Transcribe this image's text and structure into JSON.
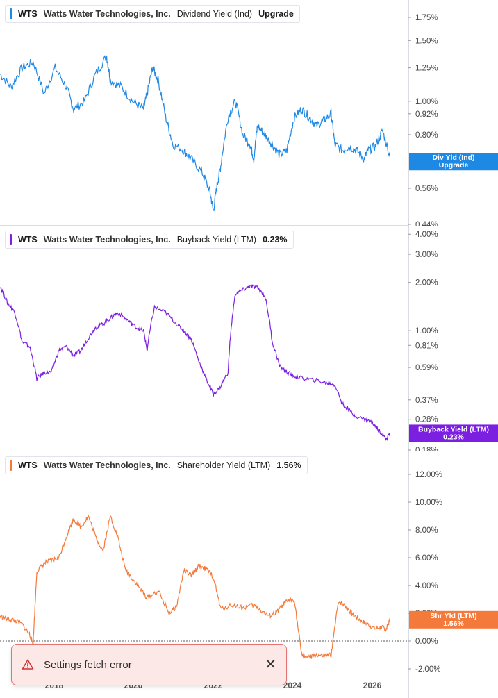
{
  "x_axis_labels": [
    "2018",
    "2020",
    "2022",
    "2024",
    "2026"
  ],
  "toast": {
    "message": "Settings fetch error",
    "icon": "warning-triangle-icon",
    "close_icon": "close-icon"
  },
  "chart_data": [
    {
      "type": "line",
      "ticker": "WTS",
      "company": "Watts Water Technologies, Inc.",
      "metric": "Dividend Yield (Ind)",
      "legend_value": "Upgrade",
      "color": "#1e88e5",
      "scale": "log",
      "y_ticks": [
        "1.75%",
        "1.50%",
        "1.25%",
        "1.00%",
        "0.92%",
        "0.80%",
        "0.56%",
        "0.44%"
      ],
      "y_tick_values": [
        1.75,
        1.5,
        1.25,
        1.0,
        0.92,
        0.8,
        0.56,
        0.44
      ],
      "ylim": [
        0.44,
        1.92
      ],
      "end_label": [
        "Div Yld (Ind)",
        "Upgrade"
      ],
      "xlim": [
        2016.0,
        2026.8
      ],
      "x": [
        2016.0,
        2016.3,
        2016.6,
        2016.9,
        2017.2,
        2017.5,
        2017.8,
        2018.0,
        2018.3,
        2018.6,
        2018.9,
        2019.0,
        2019.3,
        2019.6,
        2019.9,
        2020.0,
        2020.15,
        2020.3,
        2020.5,
        2020.7,
        2021.0,
        2021.2,
        2021.5,
        2021.7,
        2021.8,
        2021.9,
        2022.0,
        2022.2,
        2022.4,
        2022.6,
        2022.8,
        2022.9,
        2023.0,
        2023.2,
        2023.4,
        2023.6,
        2023.8,
        2024.0,
        2024.2,
        2024.4,
        2024.6,
        2024.8,
        2025.0,
        2025.1,
        2025.3,
        2025.5,
        2025.7,
        2025.9,
        2026.0,
        2026.2,
        2026.4,
        2026.6
      ],
      "y": [
        1.2,
        1.1,
        1.25,
        1.3,
        1.05,
        1.25,
        1.1,
        0.95,
        1.0,
        1.2,
        1.35,
        1.15,
        1.1,
        1.0,
        0.95,
        1.05,
        1.25,
        1.15,
        0.9,
        0.75,
        0.72,
        0.68,
        0.62,
        0.55,
        0.48,
        0.57,
        0.65,
        0.9,
        1.0,
        0.8,
        0.75,
        0.68,
        0.85,
        0.8,
        0.75,
        0.7,
        0.72,
        0.9,
        0.95,
        0.9,
        0.85,
        0.88,
        0.92,
        0.75,
        0.72,
        0.74,
        0.72,
        0.68,
        0.72,
        0.74,
        0.82,
        0.69
      ]
    },
    {
      "type": "line",
      "ticker": "WTS",
      "company": "Watts Water Technologies, Inc.",
      "metric": "Buyback Yield (LTM)",
      "legend_value": "0.23%",
      "color": "#7b1fe0",
      "scale": "log",
      "y_ticks": [
        "4.00%",
        "3.00%",
        "2.00%",
        "1.00%",
        "0.81%",
        "0.59%",
        "0.37%",
        "0.28%",
        "0.18%"
      ],
      "y_tick_values": [
        4.0,
        3.0,
        2.0,
        1.0,
        0.81,
        0.59,
        0.37,
        0.28,
        0.18
      ],
      "ylim": [
        0.18,
        4.3
      ],
      "end_label": [
        "Buyback Yield (LTM)",
        "0.23%"
      ],
      "xlim": [
        2016.0,
        2026.8
      ],
      "x": [
        2016.0,
        2016.2,
        2016.4,
        2016.6,
        2016.8,
        2017.0,
        2017.2,
        2017.4,
        2017.6,
        2017.8,
        2018.0,
        2018.2,
        2018.4,
        2018.6,
        2018.8,
        2019.0,
        2019.2,
        2019.5,
        2019.7,
        2019.9,
        2020.0,
        2020.2,
        2020.5,
        2020.8,
        2021.0,
        2021.2,
        2021.4,
        2021.6,
        2021.8,
        2022.0,
        2022.2,
        2022.4,
        2022.6,
        2022.8,
        2023.0,
        2023.2,
        2023.4,
        2023.6,
        2023.8,
        2024.0,
        2024.3,
        2024.6,
        2024.9,
        2025.1,
        2025.3,
        2025.6,
        2025.9,
        2026.1,
        2026.3,
        2026.5,
        2026.6
      ],
      "y": [
        1.9,
        1.5,
        1.3,
        0.85,
        0.8,
        0.5,
        0.55,
        0.55,
        0.75,
        0.8,
        0.7,
        0.75,
        0.9,
        1.05,
        1.1,
        1.2,
        1.3,
        1.15,
        1.05,
        1.0,
        0.75,
        1.4,
        1.3,
        1.1,
        1.0,
        0.88,
        0.65,
        0.5,
        0.4,
        0.45,
        0.55,
        1.7,
        1.8,
        1.9,
        1.85,
        1.65,
        0.85,
        0.6,
        0.55,
        0.52,
        0.5,
        0.49,
        0.47,
        0.46,
        0.35,
        0.3,
        0.28,
        0.27,
        0.24,
        0.21,
        0.23
      ]
    },
    {
      "type": "line",
      "ticker": "WTS",
      "company": "Watts Water Technologies, Inc.",
      "metric": "Shareholder Yield (LTM)",
      "legend_value": "1.56%",
      "color": "#f47a3c",
      "scale": "linear",
      "y_ticks": [
        "12.00%",
        "10.00%",
        "8.00%",
        "6.00%",
        "4.00%",
        "2.00%",
        "0.00%",
        "-2.00%"
      ],
      "y_tick_values": [
        12,
        10,
        8,
        6,
        4,
        2,
        0,
        -2
      ],
      "ylim": [
        -2.6,
        12.9
      ],
      "end_label": [
        "Shr Yld (LTM)",
        "1.56%"
      ],
      "xlim": [
        2016.0,
        2026.8
      ],
      "x": [
        2016.0,
        2016.2,
        2016.4,
        2016.6,
        2016.8,
        2016.9,
        2017.0,
        2017.2,
        2017.4,
        2017.6,
        2017.8,
        2018.0,
        2018.2,
        2018.4,
        2018.6,
        2018.8,
        2019.0,
        2019.2,
        2019.4,
        2019.6,
        2019.8,
        2020.0,
        2020.3,
        2020.6,
        2020.8,
        2021.0,
        2021.2,
        2021.4,
        2021.6,
        2021.8,
        2022.0,
        2022.3,
        2022.6,
        2022.9,
        2023.1,
        2023.3,
        2023.5,
        2023.7,
        2023.8,
        2024.0,
        2024.2,
        2024.4,
        2024.6,
        2024.8,
        2025.0,
        2025.2,
        2025.4,
        2025.6,
        2025.8,
        2026.0,
        2026.2,
        2026.4,
        2026.5,
        2026.6
      ],
      "y": [
        1.8,
        1.6,
        1.5,
        1.2,
        0.5,
        -0.2,
        5.0,
        5.6,
        5.8,
        6.0,
        7.5,
        8.8,
        8.2,
        9.0,
        7.5,
        6.5,
        9.0,
        7.5,
        5.2,
        4.5,
        3.8,
        3.1,
        3.6,
        2.0,
        2.5,
        5.1,
        4.7,
        5.4,
        5.2,
        4.6,
        2.3,
        2.6,
        2.4,
        2.6,
        2.2,
        1.8,
        2.0,
        2.6,
        2.9,
        3.0,
        -1.0,
        -1.2,
        -1.0,
        -1.1,
        -1.0,
        2.9,
        2.5,
        1.9,
        1.5,
        1.2,
        0.9,
        1.0,
        0.8,
        1.56
      ]
    }
  ]
}
